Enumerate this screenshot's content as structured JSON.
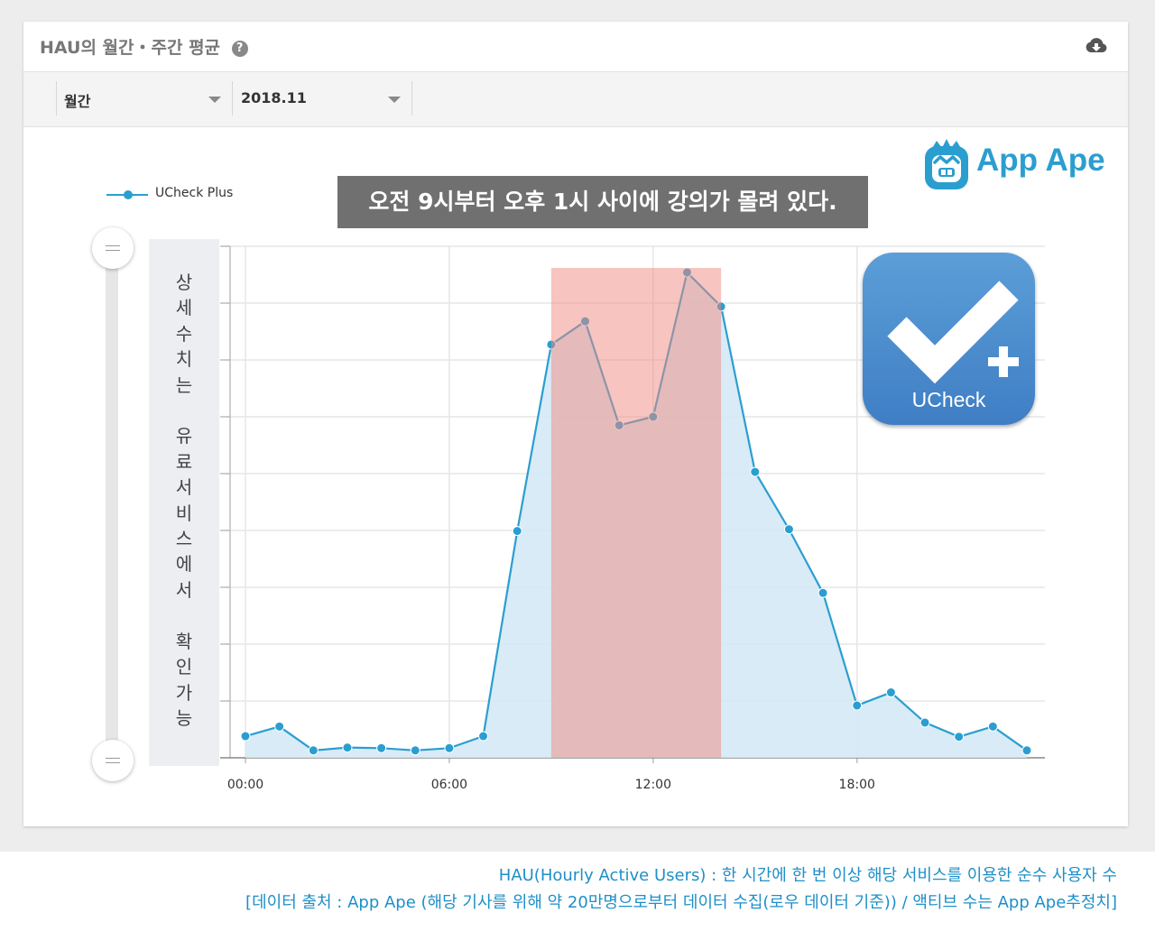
{
  "card": {
    "title": "HAU의 월간・주간 평균",
    "help_glyph": "?",
    "period_select": "월간",
    "month_select": "2018.11"
  },
  "legend": {
    "series_name": "UCheck Plus"
  },
  "callout": "오전 9시부터 오후 1시 사이에 강의가 몰려 있다.",
  "side_panel": {
    "text": "상\n세\n수\n치\n는\n\n유\n료\n서\n비\n스\n에\n서\n\n확\n인\n가\n능"
  },
  "logo": {
    "text": "App Ape"
  },
  "app_icon": {
    "name": "UCheck"
  },
  "footer": {
    "line1": "HAU(Hourly Active Users) : 한 시간에 한 번 이상 해당 서비스를 이용한 순수 사용자 수",
    "line2": "[데이터 출처 : App Ape (해당 기사를 위해 약 20만명으로부터 데이터 수집(로우 데이터 기준)) / 액티브 수는 App Ape추정치]"
  },
  "colors": {
    "series": "#2b9ed0",
    "area_fill": "#d4e9f5",
    "highlight": "#f08a80",
    "callout_bg": "#707070"
  },
  "chart_data": {
    "type": "area",
    "x": [
      0,
      1,
      2,
      3,
      4,
      5,
      6,
      7,
      8,
      9,
      10,
      11,
      12,
      13,
      14,
      15,
      16,
      17,
      18,
      19,
      20,
      21,
      22,
      23
    ],
    "x_ticks": [
      "00:00",
      "06:00",
      "12:00",
      "18:00"
    ],
    "x_tick_values": [
      0,
      6,
      12,
      18
    ],
    "series": [
      {
        "name": "UCheck Plus",
        "values": [
          3.8,
          5.5,
          1.3,
          1.8,
          1.7,
          1.3,
          1.7,
          3.8,
          39.9,
          72.7,
          76.8,
          58.5,
          60.0,
          85.4,
          79.4,
          50.3,
          40.2,
          29.0,
          9.2,
          11.5,
          6.2,
          3.7,
          5.5,
          1.3
        ]
      }
    ],
    "ylim": [
      0,
      90
    ],
    "y_gridlines": [
      0,
      10,
      20,
      30,
      40,
      50,
      60,
      70,
      80,
      90
    ],
    "y_tick_labels_shown": false,
    "highlight_range": {
      "from": 9,
      "to": 14
    },
    "grid": true,
    "legend": "top-left"
  }
}
